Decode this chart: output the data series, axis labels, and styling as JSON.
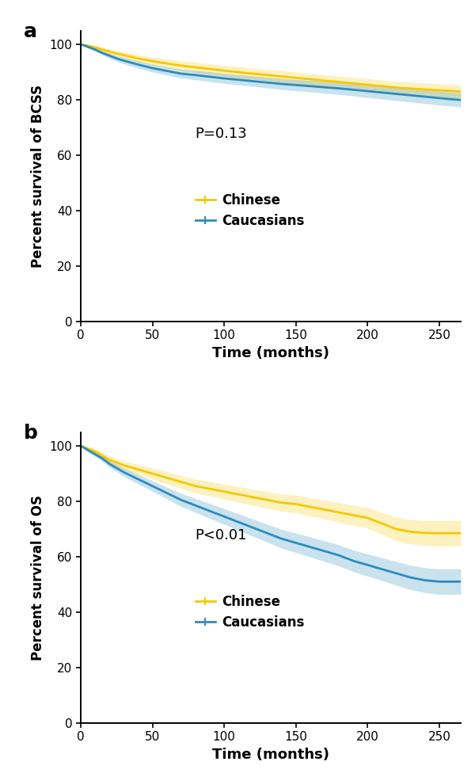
{
  "panel_a": {
    "label": "a",
    "ylabel": "Percent survival of BCSS",
    "xlabel": "Time (months)",
    "pvalue": "P=0.13",
    "xlim": [
      0,
      265
    ],
    "ylim": [
      0,
      105
    ],
    "yticks": [
      0,
      20,
      40,
      60,
      80,
      100
    ],
    "xticks": [
      0,
      50,
      100,
      150,
      200,
      250
    ],
    "chinese_color": "#F5C800",
    "caucasian_color": "#2B8CBE",
    "chinese_x": [
      0,
      3,
      6,
      10,
      15,
      20,
      25,
      30,
      40,
      50,
      60,
      70,
      80,
      90,
      100,
      120,
      140,
      160,
      180,
      200,
      220,
      240,
      260,
      265
    ],
    "chinese_y": [
      100,
      99.8,
      99.5,
      99.0,
      98.2,
      97.5,
      96.8,
      96.2,
      95.0,
      94.0,
      93.2,
      92.4,
      91.8,
      91.2,
      90.6,
      89.5,
      88.5,
      87.5,
      86.5,
      85.5,
      84.5,
      83.8,
      83.2,
      83.0
    ],
    "chinese_ci_lo": [
      100,
      99.5,
      99.0,
      98.3,
      97.3,
      96.5,
      95.7,
      95.0,
      93.7,
      92.6,
      91.6,
      90.7,
      90.0,
      89.3,
      88.7,
      87.5,
      86.4,
      85.4,
      84.4,
      83.3,
      82.3,
      81.5,
      80.8,
      80.6
    ],
    "chinese_ci_hi": [
      100,
      100,
      100,
      99.7,
      99.1,
      98.5,
      97.9,
      97.4,
      96.3,
      95.4,
      94.8,
      94.1,
      93.6,
      93.1,
      92.5,
      91.5,
      90.6,
      89.6,
      88.6,
      87.7,
      86.7,
      86.1,
      85.6,
      85.4
    ],
    "caucasian_x": [
      0,
      3,
      6,
      10,
      15,
      20,
      25,
      30,
      40,
      50,
      60,
      70,
      80,
      90,
      100,
      120,
      140,
      160,
      180,
      200,
      220,
      240,
      260,
      265
    ],
    "caucasian_y": [
      100,
      99.6,
      99.0,
      98.2,
      97.0,
      96.0,
      95.0,
      94.2,
      92.8,
      91.5,
      90.5,
      89.5,
      89.0,
      88.4,
      87.8,
      86.8,
      85.8,
      85.0,
      84.2,
      83.2,
      82.2,
      81.2,
      80.2,
      80.0
    ],
    "caucasian_ci_lo": [
      100,
      99.2,
      98.5,
      97.6,
      96.3,
      95.1,
      94.0,
      93.1,
      91.5,
      90.1,
      89.0,
      87.9,
      87.3,
      86.6,
      86.0,
      84.9,
      83.8,
      82.9,
      82.0,
      80.9,
      79.8,
      78.7,
      77.7,
      77.5
    ],
    "caucasian_ci_hi": [
      100,
      100,
      99.5,
      98.8,
      97.7,
      96.9,
      96.0,
      95.3,
      94.1,
      92.9,
      92.0,
      91.1,
      90.7,
      90.2,
      89.6,
      88.7,
      87.8,
      87.1,
      86.4,
      85.5,
      84.6,
      83.7,
      82.7,
      82.5
    ]
  },
  "panel_b": {
    "label": "b",
    "ylabel": "Percent survival of OS",
    "xlabel": "Time (months)",
    "pvalue": "P<0.01",
    "xlim": [
      0,
      265
    ],
    "ylim": [
      0,
      105
    ],
    "yticks": [
      0,
      20,
      40,
      60,
      80,
      100
    ],
    "xticks": [
      0,
      50,
      100,
      150,
      200,
      250
    ],
    "chinese_color": "#F5C800",
    "caucasian_color": "#2B8CBE",
    "chinese_x": [
      0,
      5,
      10,
      15,
      20,
      30,
      40,
      50,
      60,
      70,
      80,
      90,
      100,
      110,
      120,
      130,
      140,
      150,
      160,
      170,
      180,
      190,
      200,
      210,
      215,
      220,
      225,
      230,
      235,
      240,
      245,
      250,
      255,
      260,
      265
    ],
    "chinese_y": [
      100,
      99.0,
      98.0,
      96.5,
      95.0,
      93.0,
      91.5,
      90.0,
      88.5,
      87.0,
      85.5,
      84.5,
      83.5,
      82.5,
      81.5,
      80.5,
      79.5,
      79.0,
      78.0,
      77.0,
      76.0,
      75.0,
      74.0,
      72.0,
      71.0,
      70.0,
      69.5,
      69.0,
      68.8,
      68.6,
      68.5,
      68.5,
      68.5,
      68.5,
      68.5
    ],
    "chinese_ci_lo": [
      100,
      98.2,
      97.0,
      95.3,
      93.6,
      91.4,
      89.7,
      88.0,
      86.3,
      84.7,
      83.0,
      81.9,
      80.8,
      79.7,
      78.6,
      77.5,
      76.4,
      75.8,
      74.7,
      73.6,
      72.5,
      71.4,
      70.3,
      68.1,
      66.9,
      65.8,
      65.2,
      64.6,
      64.3,
      64.1,
      63.9,
      63.9,
      63.9,
      63.9,
      63.9
    ],
    "chinese_ci_hi": [
      100,
      99.8,
      99.0,
      97.7,
      96.4,
      94.6,
      93.3,
      92.0,
      90.7,
      89.3,
      88.0,
      87.1,
      86.2,
      85.3,
      84.4,
      83.5,
      82.6,
      82.2,
      81.3,
      80.4,
      79.5,
      78.6,
      77.7,
      75.9,
      75.1,
      74.2,
      73.8,
      73.4,
      73.3,
      73.1,
      73.1,
      73.1,
      73.1,
      73.1,
      73.1
    ],
    "caucasian_x": [
      0,
      5,
      10,
      15,
      20,
      30,
      40,
      50,
      60,
      70,
      80,
      90,
      100,
      110,
      120,
      130,
      140,
      150,
      160,
      170,
      180,
      190,
      200,
      210,
      220,
      230,
      240,
      250,
      260,
      265
    ],
    "caucasian_y": [
      100,
      98.5,
      97.0,
      95.5,
      93.5,
      90.5,
      88.0,
      85.5,
      83.0,
      80.5,
      78.5,
      76.5,
      74.5,
      72.5,
      70.5,
      68.5,
      66.5,
      65.0,
      63.5,
      62.0,
      60.5,
      58.5,
      57.0,
      55.5,
      54.0,
      52.5,
      51.5,
      51.0,
      51.0,
      51.0
    ],
    "caucasian_ci_lo": [
      100,
      97.8,
      96.1,
      94.4,
      92.3,
      89.0,
      86.3,
      83.6,
      80.9,
      78.1,
      76.0,
      73.8,
      71.7,
      69.5,
      67.4,
      65.3,
      63.1,
      61.5,
      59.9,
      58.3,
      56.7,
      54.6,
      53.0,
      51.4,
      49.7,
      48.1,
      47.0,
      46.4,
      46.4,
      46.4
    ],
    "caucasian_ci_hi": [
      100,
      99.2,
      97.9,
      96.6,
      94.7,
      92.0,
      89.7,
      87.4,
      85.1,
      82.9,
      81.0,
      79.2,
      77.3,
      75.5,
      73.6,
      71.7,
      69.9,
      68.5,
      67.1,
      65.7,
      64.3,
      62.4,
      61.0,
      59.6,
      58.3,
      56.9,
      56.0,
      55.6,
      55.6,
      55.6
    ]
  },
  "legend_chinese": "Chinese",
  "legend_caucasians": "Caucasians",
  "line_width": 2.0,
  "ci_alpha": 0.25,
  "font_size": 12,
  "label_font_size": 18,
  "tick_font_size": 11,
  "pvalue_font_size": 13,
  "background_color": "#ffffff"
}
